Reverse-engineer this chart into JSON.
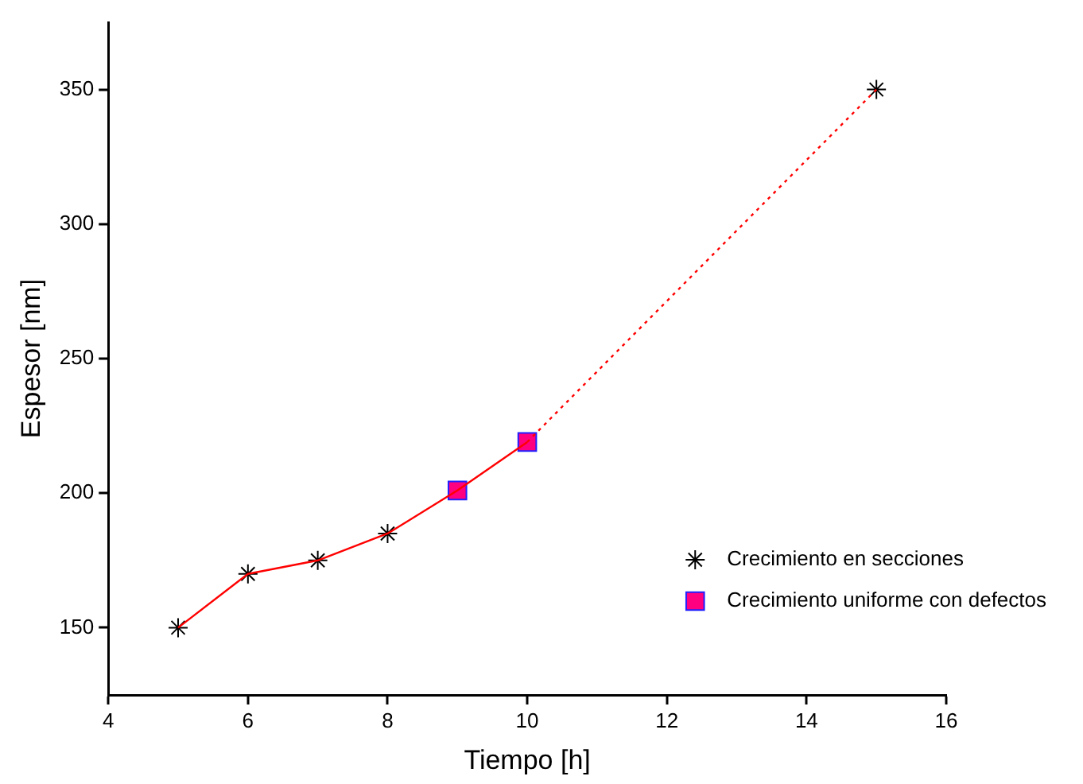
{
  "chart_data": {
    "type": "line",
    "xlabel": "Tiempo [h]",
    "ylabel": "Espesor [nm]",
    "xlim": [
      4,
      16
    ],
    "xticks": [
      4,
      6,
      8,
      10,
      12,
      14,
      16
    ],
    "ylim": [
      125,
      375
    ],
    "yticks": [
      150,
      200,
      250,
      300,
      350
    ],
    "grid": false,
    "legend": "bottom right",
    "series": [
      {
        "type": "line",
        "color": "#ff0000",
        "x": [
          5,
          6,
          7,
          8,
          9,
          10
        ],
        "values": [
          150,
          170,
          175,
          185,
          201,
          219
        ],
        "marker": "none",
        "line_style": "solid"
      },
      {
        "type": "line",
        "color": "#ff0000",
        "x": [
          10,
          15
        ],
        "values": [
          219,
          350
        ],
        "marker": "none",
        "line_style": "dotted"
      },
      {
        "type": "scatter",
        "name": "Crecimiento en secciones",
        "color": "#000000",
        "x": [
          5,
          6,
          7,
          8,
          15
        ],
        "values": [
          150,
          170,
          175,
          185,
          350
        ],
        "marker": "cross"
      },
      {
        "type": "scatter",
        "name": "Crecimiento uniforme con defectos",
        "color": "#ff0080",
        "x": [
          9,
          10
        ],
        "values": [
          201,
          219
        ],
        "marker": "square"
      }
    ]
  }
}
